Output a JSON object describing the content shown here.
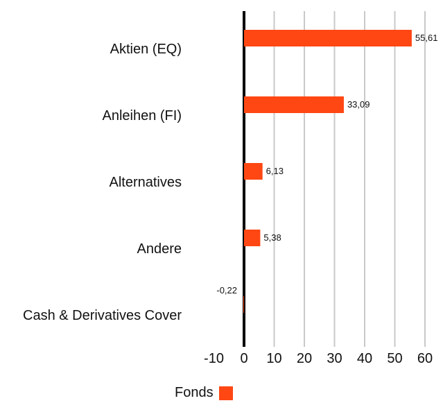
{
  "chart_data": {
    "type": "bar",
    "orientation": "horizontal",
    "categories": [
      "Aktien (EQ)",
      "Anleihen (FI)",
      "Alternatives",
      "Andere",
      "Cash & Derivatives Cover"
    ],
    "series": [
      {
        "name": "Fonds",
        "values": [
          55.61,
          33.09,
          6.13,
          5.38,
          -0.22
        ],
        "value_labels": [
          "55,61",
          "33,09",
          "6,13",
          "5,38",
          "-0,22"
        ],
        "color": "#ff4713"
      }
    ],
    "x_ticks": [
      "-10",
      "0",
      "10",
      "20",
      "30",
      "40",
      "50",
      "60"
    ],
    "xlim": [
      -10,
      60
    ],
    "grid": true,
    "legend_position": "bottom"
  }
}
